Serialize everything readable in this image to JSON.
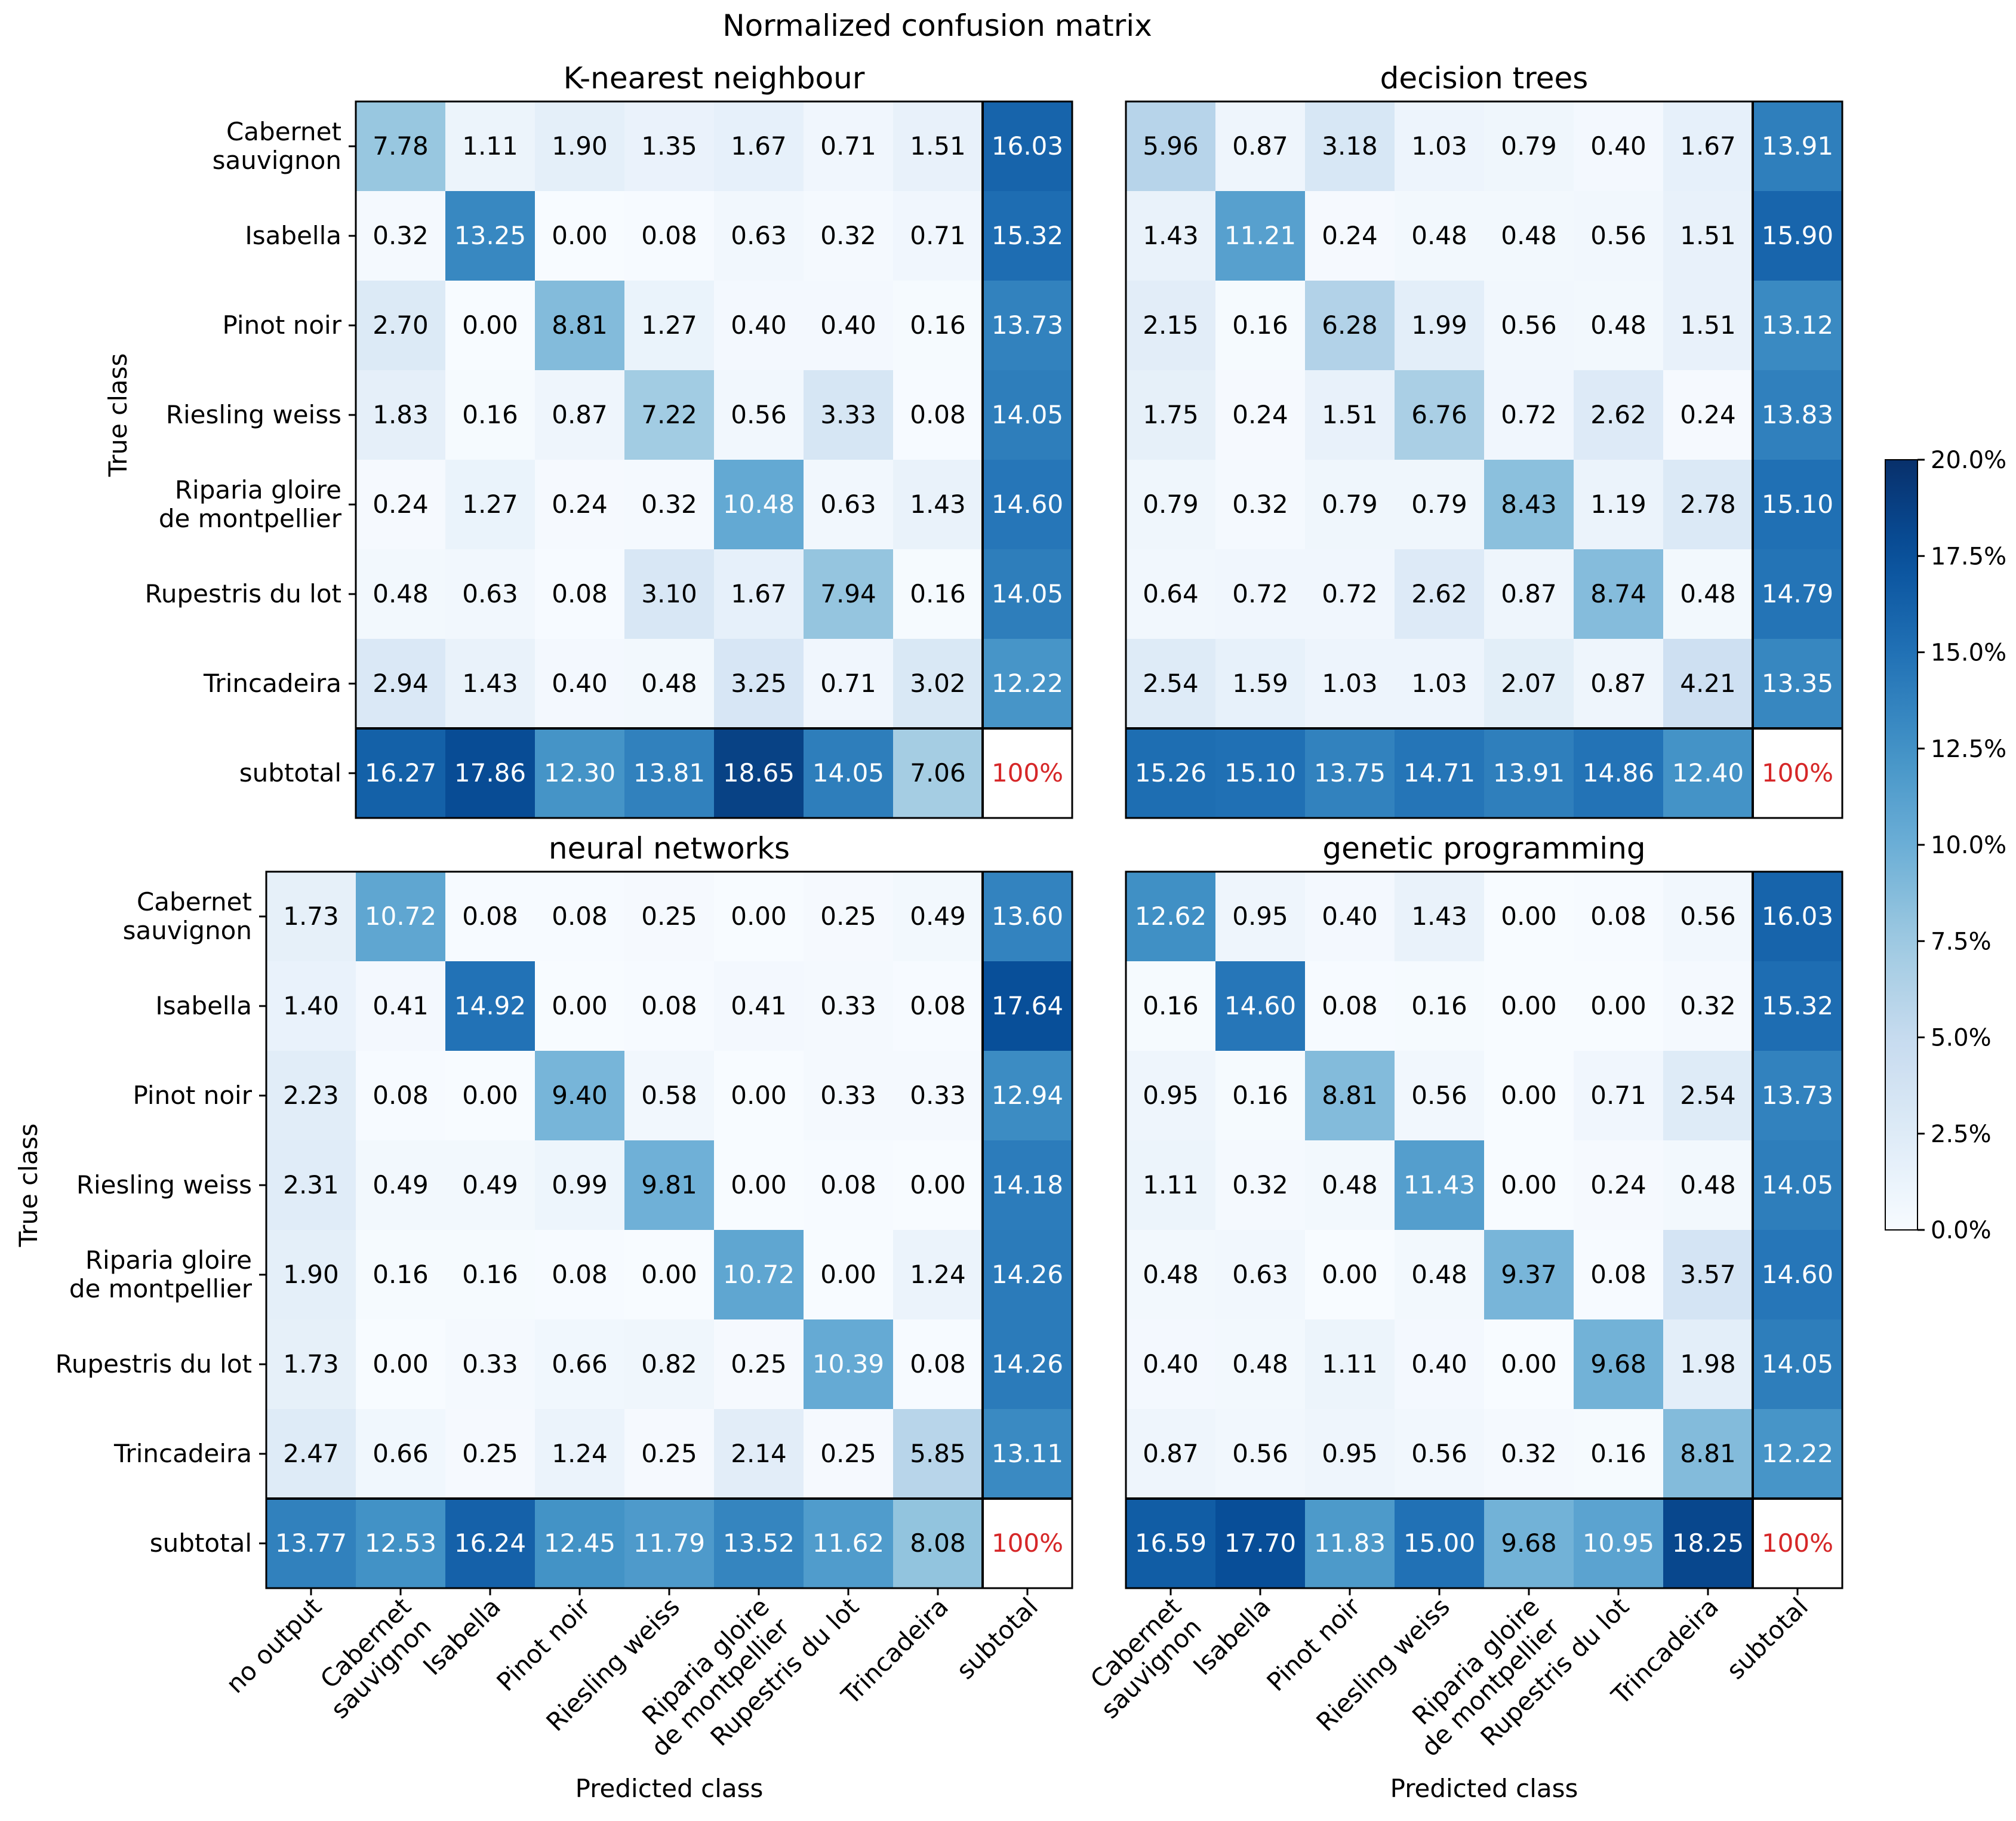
{
  "chart_data": {
    "type": "heatmap",
    "title": "Normalized confusion matrix",
    "colorbar": {
      "range": [
        0,
        20
      ],
      "ticks": [
        0,
        2.5,
        5,
        7.5,
        10,
        12.5,
        15,
        17.5,
        20
      ],
      "tick_labels": [
        "0.0%",
        "2.5%",
        "5.0%",
        "7.5%",
        "10.0%",
        "12.5%",
        "15.0%",
        "17.5%",
        "20.0%"
      ]
    },
    "total_label": "100%",
    "panels": [
      {
        "title": "K-nearest neighbour",
        "ylabel": "True class",
        "xlabel": "",
        "rows": [
          "Cabernet sauvignon",
          "Isabella",
          "Pinot noir",
          "Riesling weiss",
          "Riparia gloire de montpellier",
          "Rupestris du lot",
          "Trincadeira",
          "subtotal"
        ],
        "cols": [],
        "values": [
          [
            "7.78",
            "1.11",
            "1.90",
            "1.35",
            "1.67",
            "0.71",
            "1.51",
            "16.03"
          ],
          [
            "0.32",
            "13.25",
            "0.00",
            "0.08",
            "0.63",
            "0.32",
            "0.71",
            "15.32"
          ],
          [
            "2.70",
            "0.00",
            "8.81",
            "1.27",
            "0.40",
            "0.40",
            "0.16",
            "13.73"
          ],
          [
            "1.83",
            "0.16",
            "0.87",
            "7.22",
            "0.56",
            "3.33",
            "0.08",
            "14.05"
          ],
          [
            "0.24",
            "1.27",
            "0.24",
            "0.32",
            "10.48",
            "0.63",
            "1.43",
            "14.60"
          ],
          [
            "0.48",
            "0.63",
            "0.08",
            "3.10",
            "1.67",
            "7.94",
            "0.16",
            "14.05"
          ],
          [
            "2.94",
            "1.43",
            "0.40",
            "0.48",
            "3.25",
            "0.71",
            "3.02",
            "12.22"
          ],
          [
            "16.27",
            "17.86",
            "12.30",
            "13.81",
            "18.65",
            "14.05",
            "7.06",
            "100%"
          ]
        ]
      },
      {
        "title": "decision trees",
        "ylabel": "",
        "xlabel": "",
        "rows": [],
        "cols": [],
        "values": [
          [
            "5.96",
            "0.87",
            "3.18",
            "1.03",
            "0.79",
            "0.40",
            "1.67",
            "13.91"
          ],
          [
            "1.43",
            "11.21",
            "0.24",
            "0.48",
            "0.48",
            "0.56",
            "1.51",
            "15.90"
          ],
          [
            "2.15",
            "0.16",
            "6.28",
            "1.99",
            "0.56",
            "0.48",
            "1.51",
            "13.12"
          ],
          [
            "1.75",
            "0.24",
            "1.51",
            "6.76",
            "0.72",
            "2.62",
            "0.24",
            "13.83"
          ],
          [
            "0.79",
            "0.32",
            "0.79",
            "0.79",
            "8.43",
            "1.19",
            "2.78",
            "15.10"
          ],
          [
            "0.64",
            "0.72",
            "0.72",
            "2.62",
            "0.87",
            "8.74",
            "0.48",
            "14.79"
          ],
          [
            "2.54",
            "1.59",
            "1.03",
            "1.03",
            "2.07",
            "0.87",
            "4.21",
            "13.35"
          ],
          [
            "15.26",
            "15.10",
            "13.75",
            "14.71",
            "13.91",
            "14.86",
            "12.40",
            "100%"
          ]
        ]
      },
      {
        "title": "neural networks",
        "ylabel": "True class",
        "xlabel": "Predicted class",
        "rows": [
          "Cabernet sauvignon",
          "Isabella",
          "Pinot noir",
          "Riesling weiss",
          "Riparia gloire de montpellier",
          "Rupestris du lot",
          "Trincadeira",
          "subtotal"
        ],
        "cols": [
          "no output",
          "Cabernet sauvignon",
          "Isabella",
          "Pinot noir",
          "Riesling weiss",
          "Riparia gloire de montpellier",
          "Rupestris du lot",
          "Trincadeira",
          "subtotal"
        ],
        "values": [
          [
            "1.73",
            "10.72",
            "0.08",
            "0.08",
            "0.25",
            "0.00",
            "0.25",
            "0.49",
            "13.60"
          ],
          [
            "1.40",
            "0.41",
            "14.92",
            "0.00",
            "0.08",
            "0.41",
            "0.33",
            "0.08",
            "17.64"
          ],
          [
            "2.23",
            "0.08",
            "0.00",
            "9.40",
            "0.58",
            "0.00",
            "0.33",
            "0.33",
            "12.94"
          ],
          [
            "2.31",
            "0.49",
            "0.49",
            "0.99",
            "9.81",
            "0.00",
            "0.08",
            "0.00",
            "14.18"
          ],
          [
            "1.90",
            "0.16",
            "0.16",
            "0.08",
            "0.00",
            "10.72",
            "0.00",
            "1.24",
            "14.26"
          ],
          [
            "1.73",
            "0.00",
            "0.33",
            "0.66",
            "0.82",
            "0.25",
            "10.39",
            "0.08",
            "14.26"
          ],
          [
            "2.47",
            "0.66",
            "0.25",
            "1.24",
            "0.25",
            "2.14",
            "0.25",
            "5.85",
            "13.11"
          ],
          [
            "13.77",
            "12.53",
            "16.24",
            "12.45",
            "11.79",
            "13.52",
            "11.62",
            "8.08",
            "100%"
          ]
        ]
      },
      {
        "title": "genetic programming",
        "ylabel": "",
        "xlabel": "Predicted class",
        "rows": [],
        "cols": [
          "Cabernet sauvignon",
          "Isabella",
          "Pinot noir",
          "Riesling weiss",
          "Riparia gloire de montpellier",
          "Rupestris du lot",
          "Trincadeira",
          "subtotal"
        ],
        "values": [
          [
            "12.62",
            "0.95",
            "0.40",
            "1.43",
            "0.00",
            "0.08",
            "0.56",
            "16.03"
          ],
          [
            "0.16",
            "14.60",
            "0.08",
            "0.16",
            "0.00",
            "0.00",
            "0.32",
            "15.32"
          ],
          [
            "0.95",
            "0.16",
            "8.81",
            "0.56",
            "0.00",
            "0.71",
            "2.54",
            "13.73"
          ],
          [
            "1.11",
            "0.32",
            "0.48",
            "11.43",
            "0.00",
            "0.24",
            "0.48",
            "14.05"
          ],
          [
            "0.48",
            "0.63",
            "0.00",
            "0.48",
            "9.37",
            "0.08",
            "3.57",
            "14.60"
          ],
          [
            "0.40",
            "0.48",
            "1.11",
            "0.40",
            "0.00",
            "9.68",
            "1.98",
            "14.05"
          ],
          [
            "0.87",
            "0.56",
            "0.95",
            "0.56",
            "0.32",
            "0.16",
            "8.81",
            "12.22"
          ],
          [
            "16.59",
            "17.70",
            "11.83",
            "15.00",
            "9.68",
            "10.95",
            "18.25",
            "100%"
          ]
        ]
      }
    ]
  }
}
